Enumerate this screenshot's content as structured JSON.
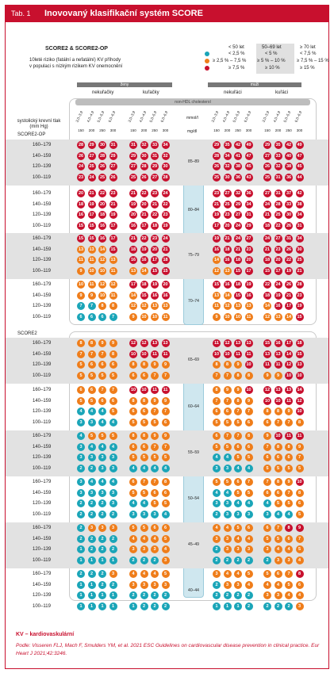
{
  "header": {
    "tab": "Tab. 1",
    "title": "Inovovaný klasifikační systém SCORE"
  },
  "subtitle": "SCORE2 & SCORE2-OP",
  "desc": [
    "10leté riziko (fatální a nefatální) KV příhody",
    "v populaci s nízkým rizikem KV onemocnění"
  ],
  "legend": {
    "col1": [
      "< 50 let",
      "< 2,5 %",
      "≥ 2,5 % – 7,5 %",
      "≥ 7,5 %"
    ],
    "col2": [
      "50–69 let",
      "< 5 %",
      "≥ 5 % – 10 %",
      "≥ 10 %"
    ],
    "col3": [
      "≥ 70 let",
      "< 7,5 %",
      "≥ 7,5 % – 15 %",
      "≥ 15 %"
    ]
  },
  "labels": {
    "zeny": "ženy",
    "muzi": "muži",
    "nekuraci": "nekuřačky",
    "kuraci": "kuřačky",
    "nekuraci_m": "nekuřáci",
    "kuraci_m": "kuřáci",
    "nonhdl": "non-HDL cholesterol",
    "sbp": "systolický krevní tlak (mm Hg)",
    "mmol": "mmol/l",
    "mgdl": "mg/dl",
    "age_title": "věk (roky)",
    "score2op": "SCORE2-OP",
    "score2": "SCORE2"
  },
  "chol_mmol": [
    "3,0–3,9",
    "4,0–4,9",
    "5,0–5,9",
    "6,0–6,9"
  ],
  "chol_mg": [
    "150",
    "200",
    "250",
    "300"
  ],
  "sbp_rows": [
    "160–179",
    "140–159",
    "120–139",
    "100–119"
  ],
  "age_groups_op": [
    "85–89",
    "80–84",
    "75–79",
    "70–74"
  ],
  "age_groups": [
    "65–69",
    "60–64",
    "55–59",
    "50–54",
    "45–49",
    "40–44"
  ],
  "grids_op": [
    [
      [
        [
          28,
          29,
          30,
          31
        ],
        [
          26,
          27,
          28,
          29
        ],
        [
          24,
          25,
          26,
          27
        ],
        [
          23,
          24,
          25,
          26
        ]
      ],
      [
        [
          31,
          32,
          33,
          34
        ],
        [
          29,
          30,
          31,
          32
        ],
        [
          27,
          28,
          29,
          30
        ],
        [
          25,
          26,
          27,
          28
        ]
      ],
      [
        [
          29,
          35,
          42,
          49
        ],
        [
          28,
          34,
          41,
          47
        ],
        [
          26,
          32,
          38,
          45
        ],
        [
          25,
          30,
          36,
          43
        ]
      ],
      [
        [
          29,
          35,
          42,
          49
        ],
        [
          27,
          33,
          40,
          47
        ],
        [
          26,
          32,
          38,
          45
        ],
        [
          25,
          31,
          36,
          44
        ]
      ]
    ],
    [
      [
        [
          20,
          21,
          22,
          23
        ],
        [
          18,
          19,
          20,
          21
        ],
        [
          16,
          17,
          18,
          19
        ],
        [
          15,
          15,
          16,
          17
        ]
      ],
      [
        [
          21,
          22,
          23,
          24
        ],
        [
          19,
          20,
          21,
          22
        ],
        [
          20,
          21,
          22,
          23
        ],
        [
          16,
          17,
          18,
          19
        ]
      ],
      [
        [
          23,
          27,
          32,
          36
        ],
        [
          21,
          25,
          29,
          34
        ],
        [
          19,
          23,
          27,
          31
        ],
        [
          17,
          20,
          24,
          29
        ]
      ],
      [
        [
          27,
          31,
          37,
          42
        ],
        [
          24,
          28,
          33,
          38
        ],
        [
          21,
          25,
          30,
          34
        ],
        [
          18,
          22,
          26,
          31
        ]
      ]
    ],
    [
      [
        [
          15,
          15,
          16,
          17
        ],
        [
          13,
          13,
          14,
          15
        ],
        [
          11,
          11,
          12,
          13
        ],
        [
          9,
          10,
          10,
          11
        ]
      ],
      [
        [
          21,
          22,
          23,
          24
        ],
        [
          18,
          19,
          20,
          21
        ],
        [
          16,
          16,
          17,
          18
        ],
        [
          13,
          14,
          15,
          15
        ]
      ],
      [
        [
          19,
          21,
          24,
          27
        ],
        [
          16,
          18,
          21,
          23
        ],
        [
          14,
          16,
          18,
          20
        ],
        [
          12,
          13,
          15,
          17
        ]
      ],
      [
        [
          24,
          27,
          31,
          34
        ],
        [
          21,
          23,
          26,
          30
        ],
        [
          18,
          20,
          22,
          25
        ],
        [
          15,
          17,
          19,
          21
        ]
      ]
    ],
    [
      [
        [
          10,
          11,
          12,
          12
        ],
        [
          9,
          9,
          10,
          11
        ],
        [
          7,
          7,
          8,
          8
        ],
        [
          6,
          6,
          6,
          7
        ]
      ],
      [
        [
          17,
          18,
          19,
          20
        ],
        [
          14,
          15,
          16,
          16
        ],
        [
          12,
          12,
          13,
          13
        ],
        [
          9,
          10,
          10,
          11
        ]
      ],
      [
        [
          15,
          16,
          18,
          19
        ],
        [
          13,
          14,
          15,
          16
        ],
        [
          11,
          12,
          13,
          13
        ],
        [
          9,
          10,
          10,
          11
        ]
      ],
      [
        [
          22,
          24,
          26,
          28
        ],
        [
          18,
          19,
          21,
          23
        ],
        [
          14,
          16,
          17,
          19
        ],
        [
          12,
          13,
          14,
          15
        ]
      ]
    ]
  ],
  "grids": [
    [
      [
        [
          8,
          8,
          9,
          9
        ],
        [
          7,
          7,
          7,
          8
        ],
        [
          5,
          6,
          6,
          6
        ],
        [
          5,
          5,
          5,
          5
        ]
      ],
      [
        [
          12,
          12,
          13,
          13
        ],
        [
          10,
          10,
          11,
          11
        ],
        [
          8,
          8,
          9,
          9
        ],
        [
          6,
          6,
          7,
          7
        ]
      ],
      [
        [
          11,
          12,
          13,
          13
        ],
        [
          10,
          10,
          11,
          11
        ],
        [
          8,
          8,
          9,
          10
        ],
        [
          7,
          7,
          8,
          8
        ]
      ],
      [
        [
          15,
          16,
          17,
          18
        ],
        [
          13,
          13,
          14,
          15
        ],
        [
          11,
          11,
          12,
          13
        ],
        [
          9,
          9,
          10,
          10
        ]
      ]
    ],
    [
      [
        [
          6,
          6,
          7,
          7
        ],
        [
          5,
          5,
          6,
          6
        ],
        [
          4,
          4,
          4,
          5
        ],
        [
          3,
          3,
          4,
          4
        ]
      ],
      [
        [
          10,
          10,
          11,
          11
        ],
        [
          8,
          8,
          9,
          9
        ],
        [
          6,
          6,
          7,
          7
        ],
        [
          5,
          5,
          5,
          6
        ]
      ],
      [
        [
          8,
          9,
          9,
          10
        ],
        [
          7,
          7,
          8,
          9
        ],
        [
          6,
          6,
          7,
          7
        ],
        [
          5,
          5,
          5,
          6
        ]
      ],
      [
        [
          12,
          13,
          13,
          14
        ],
        [
          10,
          10,
          11,
          12
        ],
        [
          8,
          8,
          9,
          10
        ],
        [
          6,
          7,
          7,
          8
        ]
      ]
    ],
    [
      [
        [
          4,
          5,
          5,
          5
        ],
        [
          3,
          4,
          4,
          4
        ],
        [
          3,
          3,
          3,
          3
        ],
        [
          2,
          2,
          3,
          3
        ]
      ],
      [
        [
          8,
          8,
          9,
          9
        ],
        [
          6,
          6,
          7,
          7
        ],
        [
          5,
          5,
          5,
          5
        ],
        [
          4,
          4,
          4,
          4
        ]
      ],
      [
        [
          6,
          7,
          7,
          8
        ],
        [
          5,
          5,
          6,
          6
        ],
        [
          4,
          4,
          5,
          5
        ],
        [
          3,
          3,
          4,
          4
        ]
      ],
      [
        [
          9,
          10,
          11,
          11
        ],
        [
          7,
          8,
          8,
          9
        ],
        [
          6,
          6,
          6,
          7
        ],
        [
          5,
          5,
          5,
          5
        ]
      ]
    ],
    [
      [
        [
          3,
          4,
          4,
          4
        ],
        [
          3,
          3,
          3,
          3
        ],
        [
          2,
          2,
          2,
          3
        ],
        [
          2,
          2,
          2,
          2
        ]
      ],
      [
        [
          6,
          7,
          7,
          8
        ],
        [
          5,
          5,
          6,
          6
        ],
        [
          4,
          4,
          5,
          5
        ],
        [
          3,
          3,
          3,
          4
        ]
      ],
      [
        [
          5,
          5,
          6,
          7
        ],
        [
          4,
          4,
          5,
          5
        ],
        [
          3,
          3,
          4,
          4
        ],
        [
          2,
          3,
          3,
          3
        ]
      ],
      [
        [
          7,
          8,
          9,
          10
        ],
        [
          6,
          6,
          7,
          8
        ],
        [
          4,
          5,
          5,
          6
        ],
        [
          3,
          4,
          4,
          5
        ]
      ]
    ],
    [
      [
        [
          2,
          3,
          3,
          3
        ],
        [
          2,
          2,
          2,
          2
        ],
        [
          1,
          2,
          2,
          2
        ],
        [
          1,
          1,
          1,
          1
        ]
      ],
      [
        [
          5,
          5,
          6,
          6
        ],
        [
          4,
          4,
          4,
          5
        ],
        [
          3,
          3,
          3,
          4
        ],
        [
          2,
          2,
          2,
          3
        ]
      ],
      [
        [
          4,
          4,
          5,
          6
        ],
        [
          3,
          3,
          4,
          4
        ],
        [
          2,
          3,
          3,
          3
        ],
        [
          2,
          2,
          2,
          2
        ]
      ],
      [
        [
          6,
          7,
          8,
          9
        ],
        [
          5,
          5,
          6,
          7
        ],
        [
          3,
          4,
          4,
          5
        ],
        [
          2,
          3,
          3,
          4
        ]
      ]
    ],
    [
      [
        [
          2,
          2,
          2,
          3
        ],
        [
          1,
          1,
          2,
          2
        ],
        [
          1,
          1,
          1,
          1
        ],
        [
          1,
          1,
          1,
          1
        ]
      ],
      [
        [
          4,
          4,
          4,
          5
        ],
        [
          3,
          3,
          3,
          3
        ],
        [
          2,
          2,
          2,
          2
        ],
        [
          1,
          2,
          2,
          2
        ]
      ],
      [
        [
          3,
          4,
          4,
          5
        ],
        [
          2,
          3,
          3,
          4
        ],
        [
          2,
          2,
          2,
          2
        ],
        [
          1,
          1,
          1,
          2
        ]
      ],
      [
        [
          5,
          6,
          7,
          8
        ],
        [
          4,
          4,
          5,
          6
        ],
        [
          3,
          3,
          4,
          4
        ],
        [
          2,
          2,
          2,
          3
        ]
      ]
    ]
  ],
  "footer": {
    "kv": "KV – kardiovaskulární",
    "source": "Podle: Visseren FLJ, Mach F, Smulders YM, et al. 2021 ESC Guidelines on cardiovascular disease prevention in clinical practice. Eur Heart J 2021;42:3246."
  },
  "colors": {
    "red": "#c8102e",
    "orange": "#ef7d1a",
    "teal": "#1aa5b8"
  }
}
